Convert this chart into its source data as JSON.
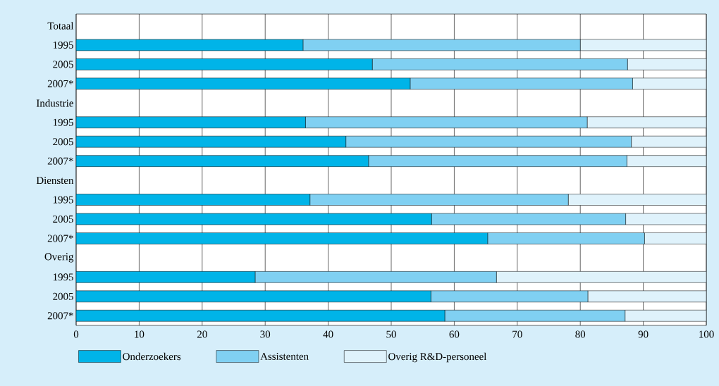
{
  "chart_data": {
    "type": "bar",
    "orientation": "horizontal",
    "stacked": true,
    "categories": [
      "Totaal",
      "1995",
      "2005",
      "2007*",
      "Industrie",
      "1995",
      "2005",
      "2007*",
      "Diensten",
      "1995",
      "2005",
      "2007*",
      "Overig",
      "1995",
      "2005",
      "2007*"
    ],
    "series": [
      {
        "name": "Onderzoekers",
        "color": "#00b4e8",
        "values": [
          null,
          36.0,
          47.0,
          53.0,
          null,
          36.4,
          42.8,
          46.4,
          null,
          37.1,
          56.4,
          65.3,
          null,
          28.4,
          56.3,
          58.5
        ]
      },
      {
        "name": "Assistenten",
        "color": "#80d0f2",
        "values": [
          null,
          44.0,
          40.5,
          35.3,
          null,
          44.7,
          45.3,
          41.0,
          null,
          41.0,
          30.8,
          24.9,
          null,
          38.3,
          24.9,
          28.6
        ]
      },
      {
        "name": "Overig R&D-personeel",
        "color": "#dff2fb",
        "values": [
          null,
          20.0,
          12.5,
          11.7,
          null,
          18.9,
          11.9,
          12.6,
          null,
          21.9,
          12.8,
          9.8,
          null,
          33.3,
          18.8,
          12.9
        ]
      }
    ],
    "xlim": [
      0,
      100
    ],
    "xticks": [
      0,
      10,
      20,
      30,
      40,
      50,
      60,
      70,
      80,
      90,
      100
    ],
    "grid": "x",
    "legend": "bottom"
  }
}
